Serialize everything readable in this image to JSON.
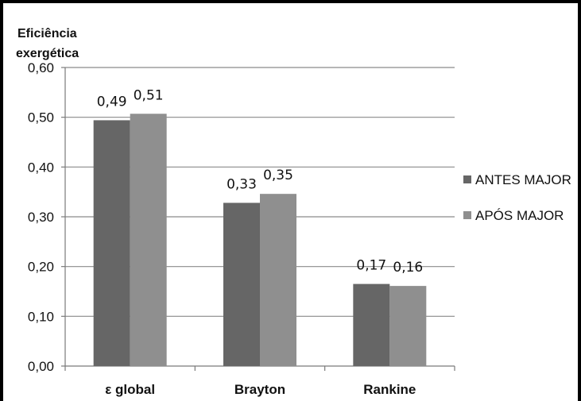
{
  "chart_data": {
    "type": "bar",
    "ylabel_lines": [
      "Eficiência",
      "exergética"
    ],
    "xlabel": "",
    "ylim": [
      0,
      0.6
    ],
    "yticks": [
      "0,00",
      "0,10",
      "0,20",
      "0,30",
      "0,40",
      "0,50",
      "0,60"
    ],
    "categories": [
      "ε global",
      "Brayton",
      "Rankine"
    ],
    "series": [
      {
        "name": "ANTES MAJOR",
        "values": [
          0.494,
          0.328,
          0.165
        ],
        "labels": [
          "0,49",
          "0,33",
          "0,17"
        ],
        "color": "#666666"
      },
      {
        "name": "APÓS MAJOR",
        "values": [
          0.507,
          0.346,
          0.161
        ],
        "labels": [
          "0,51",
          "0,35",
          "0,16"
        ],
        "color": "#8f8f8f"
      }
    ],
    "grid": true,
    "legend_position": "right"
  }
}
